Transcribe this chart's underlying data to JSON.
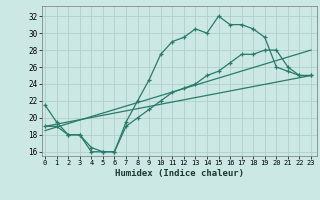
{
  "line1_x": [
    0,
    1,
    2,
    3,
    4,
    5,
    6,
    7,
    8,
    9,
    10,
    11,
    12,
    13,
    14,
    15,
    16,
    17,
    18,
    19,
    20,
    21,
    22,
    23
  ],
  "line1_y": [
    21.5,
    19.5,
    18.0,
    18.0,
    16.0,
    16.0,
    16.0,
    19.5,
    22.0,
    24.5,
    27.5,
    29.0,
    29.5,
    30.5,
    30.0,
    32.0,
    31.0,
    31.0,
    30.5,
    29.5,
    26.0,
    25.5,
    25.0,
    25.0
  ],
  "line2_x": [
    0,
    1,
    2,
    3,
    4,
    5,
    6,
    7,
    8,
    9,
    10,
    11,
    12,
    13,
    14,
    15,
    16,
    17,
    18,
    19,
    20,
    21,
    22,
    23
  ],
  "line2_y": [
    19.0,
    19.0,
    18.0,
    18.0,
    16.5,
    16.0,
    16.0,
    19.0,
    20.0,
    21.0,
    22.0,
    23.0,
    23.5,
    24.0,
    25.0,
    25.5,
    26.5,
    27.5,
    27.5,
    28.0,
    28.0,
    26.0,
    25.0,
    25.0
  ],
  "line3_x": [
    0,
    23
  ],
  "line3_y": [
    19.0,
    25.0
  ],
  "line4_x": [
    0,
    23
  ],
  "line4_y": [
    18.5,
    28.0
  ],
  "color": "#2a7a6a",
  "bg_color": "#cce8e4",
  "grid_color": "#afd0cc",
  "xlabel": "Humidex (Indice chaleur)",
  "yticks": [
    16,
    18,
    20,
    22,
    24,
    26,
    28,
    30,
    32
  ],
  "xtick_labels": [
    "0",
    "1",
    "2",
    "3",
    "4",
    "5",
    "6",
    "7",
    "8",
    "9",
    "10",
    "11",
    "12",
    "13",
    "14",
    "15",
    "16",
    "17",
    "18",
    "19",
    "20",
    "21",
    "22",
    "23"
  ],
  "xticks": [
    0,
    1,
    2,
    3,
    4,
    5,
    6,
    7,
    8,
    9,
    10,
    11,
    12,
    13,
    14,
    15,
    16,
    17,
    18,
    19,
    20,
    21,
    22,
    23
  ],
  "xlim": [
    -0.3,
    23.5
  ],
  "ylim": [
    15.5,
    33.2
  ]
}
